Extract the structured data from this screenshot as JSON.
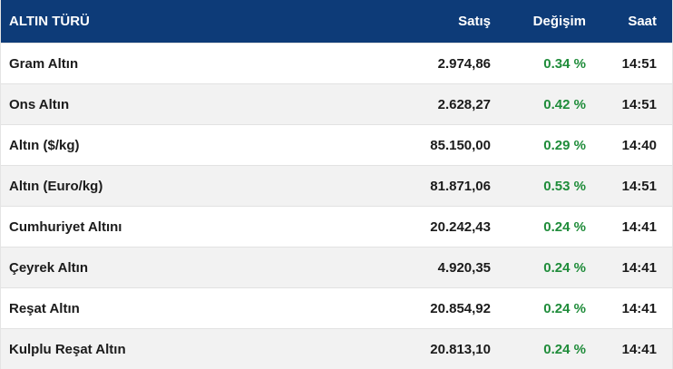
{
  "header": {
    "type_label": "ALTIN TÜRÜ",
    "price_label": "Satış",
    "change_label": "Değişim",
    "time_label": "Saat"
  },
  "colors": {
    "header_bg": "#0d3b78",
    "positive_change": "#1f8c3a"
  },
  "rows": [
    {
      "name": "Gram Altın",
      "price": "2.974,86",
      "change": "0.34 %",
      "time": "14:51"
    },
    {
      "name": "Ons Altın",
      "price": "2.628,27",
      "change": "0.42 %",
      "time": "14:51"
    },
    {
      "name": "Altın ($/kg)",
      "price": "85.150,00",
      "change": "0.29 %",
      "time": "14:40"
    },
    {
      "name": "Altın (Euro/kg)",
      "price": "81.871,06",
      "change": "0.53 %",
      "time": "14:51"
    },
    {
      "name": "Cumhuriyet Altını",
      "price": "20.242,43",
      "change": "0.24 %",
      "time": "14:41"
    },
    {
      "name": "Çeyrek Altın",
      "price": "4.920,35",
      "change": "0.24 %",
      "time": "14:41"
    },
    {
      "name": "Reşat Altın",
      "price": "20.854,92",
      "change": "0.24 %",
      "time": "14:41"
    },
    {
      "name": "Kulplu Reşat Altın",
      "price": "20.813,10",
      "change": "0.24 %",
      "time": "14:41"
    }
  ]
}
